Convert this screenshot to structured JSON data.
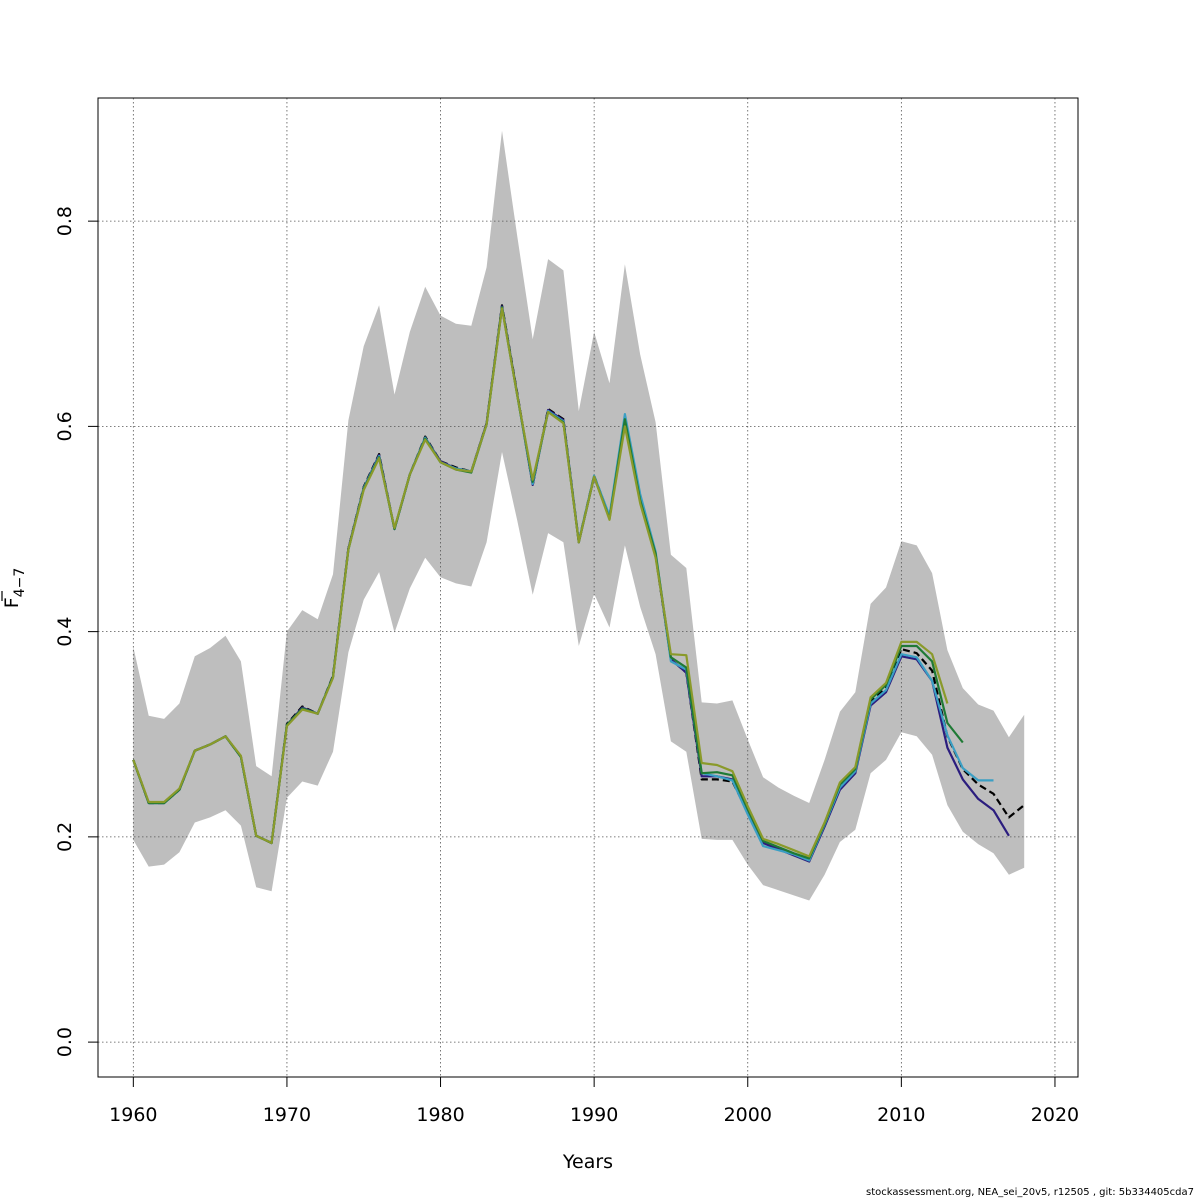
{
  "footer_text": "stockassessment.org, NEA_sei_20v5, r12505 , git: 5b334405cda7",
  "chart_data": {
    "type": "line",
    "xlabel": "Years",
    "ylabel_main": "F",
    "ylabel_sub": "4−7",
    "xlim": [
      1957.7,
      2021.5
    ],
    "ylim": [
      -0.034,
      0.92
    ],
    "x_ticks": [
      1960,
      1970,
      1980,
      1990,
      2000,
      2010,
      2020
    ],
    "y_ticks": [
      0.0,
      0.2,
      0.4,
      0.6,
      0.8
    ],
    "y_tick_labels": [
      "0.0",
      "0.2",
      "0.4",
      "0.6",
      "0.8"
    ],
    "grid": true,
    "band_color": "#bebebe",
    "confidence_band": {
      "x": [
        1960,
        1961,
        1962,
        1963,
        1964,
        1965,
        1966,
        1967,
        1968,
        1969,
        1970,
        1971,
        1972,
        1973,
        1974,
        1975,
        1976,
        1977,
        1978,
        1979,
        1980,
        1981,
        1982,
        1983,
        1984,
        1985,
        1986,
        1987,
        1988,
        1989,
        1990,
        1991,
        1992,
        1993,
        1994,
        1995,
        1996,
        1997,
        1998,
        1999,
        2000,
        2001,
        2002,
        2003,
        2004,
        2005,
        2006,
        2007,
        2008,
        2009,
        2010,
        2011,
        2012,
        2013,
        2014,
        2015,
        2016,
        2017,
        2018
      ],
      "upper": [
        0.385,
        0.318,
        0.315,
        0.33,
        0.376,
        0.384,
        0.396,
        0.371,
        0.269,
        0.259,
        0.4,
        0.421,
        0.412,
        0.456,
        0.606,
        0.678,
        0.718,
        0.631,
        0.692,
        0.736,
        0.708,
        0.7,
        0.698,
        0.755,
        0.888,
        0.785,
        0.685,
        0.763,
        0.752,
        0.615,
        0.692,
        0.642,
        0.758,
        0.67,
        0.604,
        0.475,
        0.462,
        0.331,
        0.33,
        0.333,
        0.295,
        0.258,
        0.248,
        0.24,
        0.233,
        0.275,
        0.322,
        0.341,
        0.427,
        0.443,
        0.488,
        0.484,
        0.457,
        0.382,
        0.345,
        0.329,
        0.323,
        0.297,
        0.319
      ],
      "lower": [
        0.197,
        0.171,
        0.173,
        0.185,
        0.214,
        0.219,
        0.226,
        0.211,
        0.151,
        0.147,
        0.238,
        0.254,
        0.25,
        0.283,
        0.38,
        0.431,
        0.458,
        0.399,
        0.442,
        0.472,
        0.453,
        0.447,
        0.444,
        0.487,
        0.575,
        0.508,
        0.436,
        0.496,
        0.487,
        0.386,
        0.437,
        0.404,
        0.484,
        0.424,
        0.378,
        0.293,
        0.283,
        0.198,
        0.197,
        0.197,
        0.173,
        0.153,
        0.148,
        0.143,
        0.138,
        0.163,
        0.195,
        0.207,
        0.262,
        0.275,
        0.302,
        0.298,
        0.28,
        0.231,
        0.205,
        0.193,
        0.184,
        0.163,
        0.17
      ]
    },
    "series": [
      {
        "color": "#000000",
        "dashed": true,
        "x": [
          1960,
          1961,
          1962,
          1963,
          1964,
          1965,
          1966,
          1967,
          1968,
          1969,
          1970,
          1971,
          1972,
          1973,
          1974,
          1975,
          1976,
          1977,
          1978,
          1979,
          1980,
          1981,
          1982,
          1983,
          1984,
          1985,
          1986,
          1987,
          1988,
          1989,
          1990,
          1991,
          1992,
          1993,
          1994,
          1995,
          1996,
          1997,
          1998,
          1999,
          2000,
          2001,
          2002,
          2003,
          2004,
          2005,
          2006,
          2007,
          2008,
          2009,
          2010,
          2011,
          2012,
          2013,
          2014,
          2015,
          2016,
          2017,
          2018
        ],
        "values": [
          0.275,
          0.233,
          0.233,
          0.246,
          0.284,
          0.29,
          0.298,
          0.278,
          0.201,
          0.194,
          0.31,
          0.327,
          0.32,
          0.357,
          0.481,
          0.541,
          0.573,
          0.5,
          0.553,
          0.59,
          0.566,
          0.56,
          0.556,
          0.603,
          0.718,
          0.632,
          0.543,
          0.617,
          0.607,
          0.488,
          0.552,
          0.512,
          0.603,
          0.528,
          0.474,
          0.373,
          0.36,
          0.256,
          0.256,
          0.254,
          0.224,
          0.195,
          0.189,
          0.183,
          0.178,
          0.212,
          0.249,
          0.264,
          0.332,
          0.345,
          0.383,
          0.379,
          0.362,
          0.298,
          0.266,
          0.251,
          0.242,
          0.219,
          0.231
        ]
      },
      {
        "color": "#2b1d7e",
        "dashed": false,
        "x": [
          1960,
          1961,
          1962,
          1963,
          1964,
          1965,
          1966,
          1967,
          1968,
          1969,
          1970,
          1971,
          1972,
          1973,
          1974,
          1975,
          1976,
          1977,
          1978,
          1979,
          1980,
          1981,
          1982,
          1983,
          1984,
          1985,
          1986,
          1987,
          1988,
          1989,
          1990,
          1991,
          1992,
          1993,
          1994,
          1995,
          1996,
          1997,
          1998,
          1999,
          2000,
          2001,
          2002,
          2003,
          2004,
          2005,
          2006,
          2007,
          2008,
          2009,
          2010,
          2011,
          2012,
          2013,
          2014,
          2015,
          2016,
          2017
        ],
        "values": [
          0.275,
          0.233,
          0.233,
          0.246,
          0.284,
          0.29,
          0.298,
          0.278,
          0.201,
          0.194,
          0.309,
          0.326,
          0.32,
          0.356,
          0.481,
          0.54,
          0.572,
          0.5,
          0.553,
          0.589,
          0.566,
          0.559,
          0.556,
          0.603,
          0.717,
          0.631,
          0.543,
          0.616,
          0.606,
          0.487,
          0.551,
          0.511,
          0.604,
          0.529,
          0.475,
          0.373,
          0.36,
          0.259,
          0.259,
          0.256,
          0.225,
          0.194,
          0.188,
          0.182,
          0.176,
          0.21,
          0.246,
          0.262,
          0.328,
          0.341,
          0.376,
          0.373,
          0.352,
          0.287,
          0.256,
          0.237,
          0.226,
          0.201
        ]
      },
      {
        "color": "#3b9fc4",
        "dashed": false,
        "x": [
          1960,
          1961,
          1962,
          1963,
          1964,
          1965,
          1966,
          1967,
          1968,
          1969,
          1970,
          1971,
          1972,
          1973,
          1974,
          1975,
          1976,
          1977,
          1978,
          1979,
          1980,
          1981,
          1982,
          1983,
          1984,
          1985,
          1986,
          1987,
          1988,
          1989,
          1990,
          1991,
          1992,
          1993,
          1994,
          1995,
          1996,
          1997,
          1998,
          1999,
          2000,
          2001,
          2002,
          2003,
          2004,
          2005,
          2006,
          2007,
          2008,
          2009,
          2010,
          2011,
          2012,
          2013,
          2014,
          2015,
          2016
        ],
        "values": [
          0.275,
          0.233,
          0.233,
          0.246,
          0.284,
          0.29,
          0.298,
          0.278,
          0.201,
          0.194,
          0.309,
          0.325,
          0.32,
          0.356,
          0.48,
          0.54,
          0.571,
          0.5,
          0.553,
          0.589,
          0.565,
          0.559,
          0.556,
          0.602,
          0.716,
          0.63,
          0.544,
          0.615,
          0.605,
          0.488,
          0.552,
          0.513,
          0.612,
          0.534,
          0.478,
          0.371,
          0.363,
          0.262,
          0.259,
          0.255,
          0.222,
          0.191,
          0.187,
          0.183,
          0.177,
          0.212,
          0.248,
          0.264,
          0.33,
          0.343,
          0.378,
          0.375,
          0.352,
          0.299,
          0.267,
          0.255,
          0.255
        ]
      },
      {
        "color": "#1f7a35",
        "dashed": false,
        "x": [
          1960,
          1961,
          1962,
          1963,
          1964,
          1965,
          1966,
          1967,
          1968,
          1969,
          1970,
          1971,
          1972,
          1973,
          1974,
          1975,
          1976,
          1977,
          1978,
          1979,
          1980,
          1981,
          1982,
          1983,
          1984,
          1985,
          1986,
          1987,
          1988,
          1989,
          1990,
          1991,
          1992,
          1993,
          1994,
          1995,
          1996,
          1997,
          1998,
          1999,
          2000,
          2001,
          2002,
          2003,
          2004,
          2005,
          2006,
          2007,
          2008,
          2009,
          2010,
          2011,
          2012,
          2013,
          2014
        ],
        "values": [
          0.275,
          0.233,
          0.233,
          0.246,
          0.284,
          0.29,
          0.298,
          0.278,
          0.201,
          0.194,
          0.309,
          0.325,
          0.32,
          0.356,
          0.48,
          0.539,
          0.57,
          0.5,
          0.553,
          0.588,
          0.565,
          0.558,
          0.555,
          0.602,
          0.716,
          0.63,
          0.546,
          0.614,
          0.604,
          0.487,
          0.551,
          0.51,
          0.607,
          0.528,
          0.476,
          0.375,
          0.365,
          0.262,
          0.263,
          0.26,
          0.227,
          0.196,
          0.19,
          0.184,
          0.179,
          0.213,
          0.251,
          0.266,
          0.334,
          0.348,
          0.386,
          0.386,
          0.371,
          0.311,
          0.292
        ]
      },
      {
        "color": "#8a9a2a",
        "dashed": false,
        "x": [
          1960,
          1961,
          1962,
          1963,
          1964,
          1965,
          1966,
          1967,
          1968,
          1969,
          1970,
          1971,
          1972,
          1973,
          1974,
          1975,
          1976,
          1977,
          1978,
          1979,
          1980,
          1981,
          1982,
          1983,
          1984,
          1985,
          1986,
          1987,
          1988,
          1989,
          1990,
          1991,
          1992,
          1993,
          1994,
          1995,
          1996,
          1997,
          1998,
          1999,
          2000,
          2001,
          2002,
          2003,
          2004,
          2005,
          2006,
          2007,
          2008,
          2009,
          2010,
          2011,
          2012,
          2013
        ],
        "values": [
          0.275,
          0.234,
          0.234,
          0.247,
          0.284,
          0.29,
          0.298,
          0.279,
          0.201,
          0.194,
          0.308,
          0.324,
          0.32,
          0.355,
          0.48,
          0.538,
          0.569,
          0.501,
          0.553,
          0.587,
          0.565,
          0.558,
          0.556,
          0.602,
          0.715,
          0.63,
          0.548,
          0.614,
          0.603,
          0.487,
          0.551,
          0.509,
          0.6,
          0.525,
          0.472,
          0.378,
          0.377,
          0.272,
          0.27,
          0.264,
          0.23,
          0.198,
          0.193,
          0.187,
          0.181,
          0.214,
          0.253,
          0.268,
          0.336,
          0.35,
          0.39,
          0.39,
          0.378,
          0.33
        ]
      }
    ]
  }
}
